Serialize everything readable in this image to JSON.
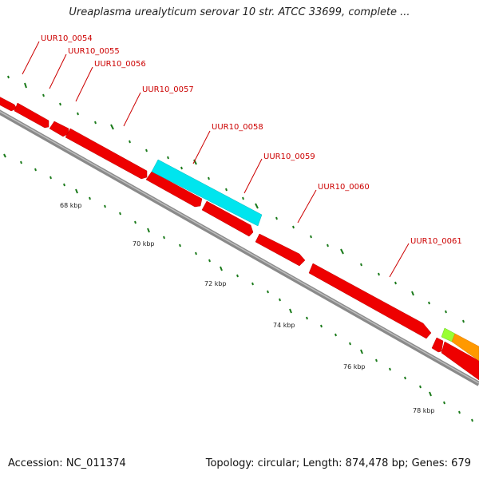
{
  "title": "Ureaplasma urealyticum serovar 10 str. ATCC 33699, complete ...",
  "footer": {
    "accession": "Accession: NC_011374",
    "topology": "Topology: circular; Length: 874,478 bp; Genes: 679"
  },
  "colors": {
    "gene_red": "#ee0000",
    "gene_cyan": "#00e5ee",
    "gene_green": "#99ff33",
    "gene_orange": "#ff9900",
    "backbone": "#888888",
    "tick_green": "#1a7a1a",
    "label_red": "#cc0000"
  },
  "genes": [
    {
      "label": "UUR10_0054"
    },
    {
      "label": "UUR10_0055"
    },
    {
      "label": "UUR10_0056"
    },
    {
      "label": "UUR10_0057"
    },
    {
      "label": "UUR10_0058"
    },
    {
      "label": "UUR10_0059"
    },
    {
      "label": "UUR10_0060"
    },
    {
      "label": "UUR10_0061"
    }
  ],
  "scale_labels": [
    "68 kbp",
    "70 kbp",
    "72 kbp",
    "74 kbp",
    "76 kbp",
    "78 kbp"
  ]
}
